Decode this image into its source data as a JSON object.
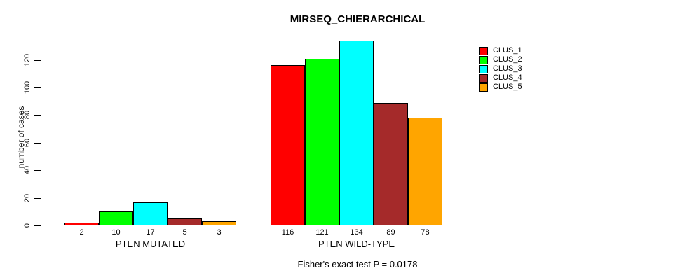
{
  "title": "MIRSEQ_CHIERARCHICAL",
  "ylabel": "number of cases",
  "footnote": "Fisher's exact test P = 0.0178",
  "legend": {
    "items": [
      {
        "label": "CLUS_1",
        "color": "#ff0000"
      },
      {
        "label": "CLUS_2",
        "color": "#00ff00"
      },
      {
        "label": "CLUS_3",
        "color": "#00ffff"
      },
      {
        "label": "CLUS_4",
        "color": "#a52a2a"
      },
      {
        "label": "CLUS_5",
        "color": "#ffa500"
      }
    ]
  },
  "chart_data": {
    "type": "bar",
    "title": "MIRSEQ_CHIERARCHICAL",
    "xlabel": "",
    "ylabel": "number of cases",
    "categories": [
      "PTEN MUTATED",
      "PTEN WILD-TYPE"
    ],
    "series": [
      {
        "name": "CLUS_1",
        "color": "#ff0000",
        "values": [
          2,
          116
        ]
      },
      {
        "name": "CLUS_2",
        "color": "#00ff00",
        "values": [
          10,
          121
        ]
      },
      {
        "name": "CLUS_3",
        "color": "#00ffff",
        "values": [
          17,
          134
        ]
      },
      {
        "name": "CLUS_4",
        "color": "#a52a2a",
        "values": [
          5,
          89
        ]
      },
      {
        "name": "CLUS_5",
        "color": "#ffa500",
        "values": [
          3,
          78
        ]
      }
    ],
    "bar_labels_shown": true,
    "yticks": [
      0,
      20,
      40,
      60,
      80,
      100,
      120
    ],
    "ylim": [
      0,
      134
    ],
    "grid": false,
    "legend_position": "right",
    "annotation": "Fisher's exact test P = 0.0178"
  }
}
